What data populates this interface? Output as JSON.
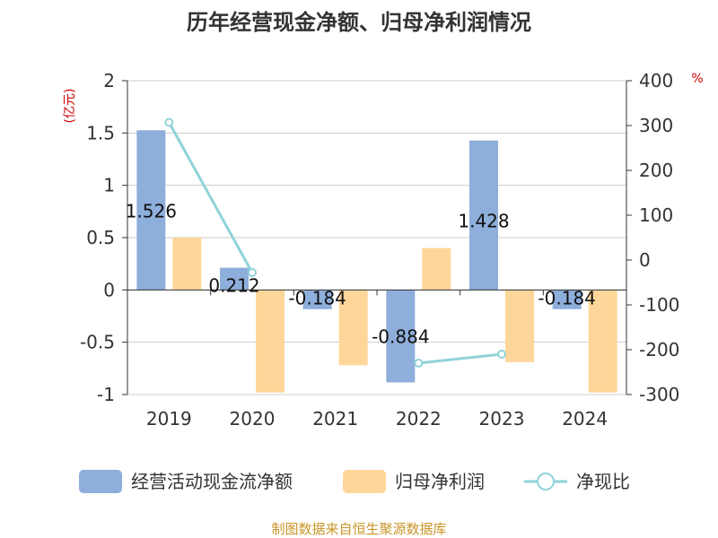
{
  "title": "历年经营现金净额、归母净利润情况",
  "source": "制图数据来自恒生聚源数据库",
  "chart_data": {
    "type": "bar",
    "categories": [
      "2019",
      "2020",
      "2021",
      "2022",
      "2023",
      "2024"
    ],
    "series": [
      {
        "name": "经营活动现金流净额",
        "kind": "bar",
        "axis": "left",
        "color": "#8eaedb",
        "values": [
          1.526,
          0.212,
          -0.184,
          -0.884,
          1.428,
          -0.184
        ],
        "labels": [
          "1.526",
          "0.212",
          "-0.184",
          "-0.884",
          "1.428",
          "-0.184"
        ]
      },
      {
        "name": "归母净利润",
        "kind": "bar",
        "axis": "left",
        "color": "#ffd699",
        "values": [
          0.5,
          -0.98,
          -0.72,
          0.4,
          -0.69,
          -0.98
        ]
      },
      {
        "name": "净现比",
        "kind": "line",
        "axis": "right",
        "color": "#8fd3d9",
        "values": [
          307,
          -28,
          null,
          -230,
          -210,
          null
        ]
      }
    ],
    "left_axis": {
      "unit": "(亿元)",
      "min": -1,
      "max": 2,
      "ticks": [
        2,
        1.5,
        1,
        0.5,
        0,
        -0.5,
        -1
      ],
      "tick_labels": [
        "2",
        "1.5",
        "1",
        "0.5",
        "0",
        "-0.5",
        "-1"
      ]
    },
    "right_axis": {
      "unit": "%",
      "min": -300,
      "max": 400,
      "ticks": [
        400,
        300,
        200,
        100,
        0,
        -100,
        -200,
        -300
      ],
      "tick_labels": [
        "400",
        "300",
        "200",
        "100",
        "0",
        "-100",
        "-200",
        "-300"
      ]
    },
    "grid": true,
    "legend_position": "bottom"
  }
}
